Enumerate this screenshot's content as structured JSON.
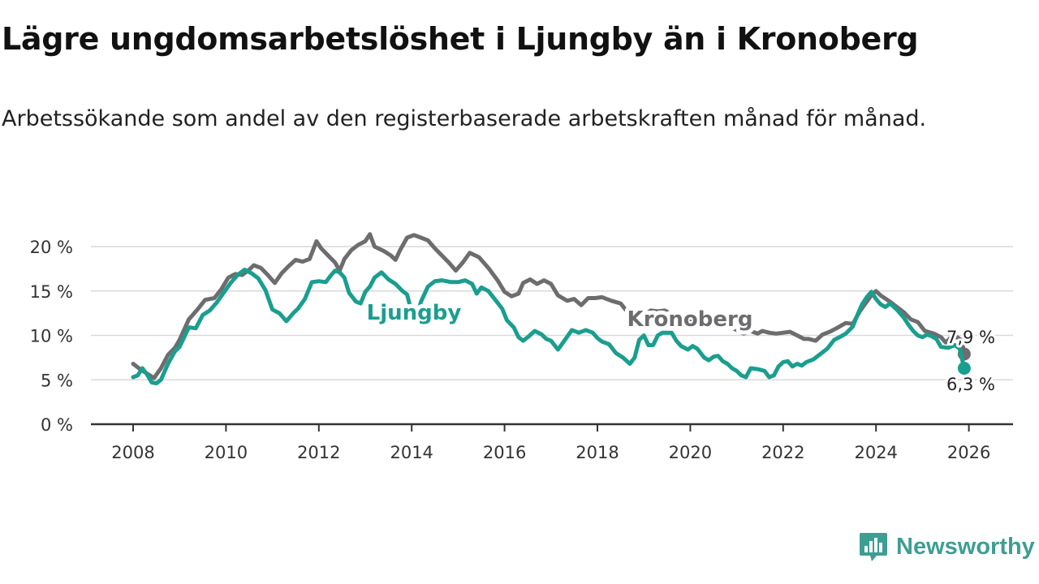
{
  "header": {
    "title": "Lägre ungdomsarbetslöshet i Ljungby än i Kronoberg",
    "subtitle": "Arbetssökande som andel av den registerbaserade arbetskraften månad för månad."
  },
  "brand": {
    "name": "Newsworthy",
    "icon": "newsworthy-logo-icon"
  },
  "colors": {
    "ljungby": "#1a9e8f",
    "kronoberg": "#6d6d6f",
    "grid": "#d9d9d9",
    "axis": "#333333"
  },
  "chart_data": {
    "type": "line",
    "title": "Lägre ungdomsarbetslöshet i Ljungby än i Kronoberg",
    "xlabel": "",
    "ylabel": "",
    "xlim": [
      2007.5,
      2027
    ],
    "ylim": [
      0,
      20
    ],
    "x_ticks": [
      2008,
      2010,
      2012,
      2014,
      2016,
      2018,
      2020,
      2022,
      2024,
      2026
    ],
    "x_tick_labels": [
      "2008",
      "2010",
      "2012",
      "2014",
      "2016",
      "2018",
      "2020",
      "2022",
      "2024",
      "2026"
    ],
    "y_ticks": [
      0,
      5,
      10,
      15,
      20
    ],
    "y_tick_labels": [
      "0 %",
      "5 %",
      "10 %",
      "15 %",
      "20 %"
    ],
    "series": [
      {
        "name": "Kronoberg",
        "label": "Kronoberg",
        "end_label": "7,9 %",
        "points": [
          [
            2008.0,
            6.8
          ],
          [
            2008.15,
            6.2
          ],
          [
            2008.3,
            5.7
          ],
          [
            2008.45,
            5.2
          ],
          [
            2008.6,
            6.3
          ],
          [
            2008.75,
            7.8
          ],
          [
            2008.9,
            8.6
          ],
          [
            2009.0,
            9.5
          ],
          [
            2009.2,
            11.8
          ],
          [
            2009.4,
            13.0
          ],
          [
            2009.55,
            14.0
          ],
          [
            2009.75,
            14.2
          ],
          [
            2009.9,
            15.2
          ],
          [
            2010.05,
            16.5
          ],
          [
            2010.2,
            16.9
          ],
          [
            2010.35,
            16.8
          ],
          [
            2010.5,
            17.4
          ],
          [
            2010.6,
            17.9
          ],
          [
            2010.75,
            17.6
          ],
          [
            2010.9,
            16.8
          ],
          [
            2011.05,
            15.9
          ],
          [
            2011.2,
            17.0
          ],
          [
            2011.35,
            17.8
          ],
          [
            2011.5,
            18.5
          ],
          [
            2011.65,
            18.3
          ],
          [
            2011.8,
            18.6
          ],
          [
            2011.95,
            20.6
          ],
          [
            2012.05,
            19.8
          ],
          [
            2012.2,
            19.0
          ],
          [
            2012.35,
            18.2
          ],
          [
            2012.45,
            17.3
          ],
          [
            2012.55,
            18.6
          ],
          [
            2012.7,
            19.6
          ],
          [
            2012.85,
            20.2
          ],
          [
            2013.0,
            20.6
          ],
          [
            2013.1,
            21.4
          ],
          [
            2013.2,
            20.0
          ],
          [
            2013.4,
            19.5
          ],
          [
            2013.55,
            19.0
          ],
          [
            2013.65,
            18.5
          ],
          [
            2013.75,
            19.6
          ],
          [
            2013.9,
            21.0
          ],
          [
            2014.05,
            21.3
          ],
          [
            2014.2,
            21.0
          ],
          [
            2014.35,
            20.7
          ],
          [
            2014.5,
            19.8
          ],
          [
            2014.65,
            19.0
          ],
          [
            2014.8,
            18.2
          ],
          [
            2014.95,
            17.3
          ],
          [
            2015.1,
            18.2
          ],
          [
            2015.25,
            19.3
          ],
          [
            2015.45,
            18.8
          ],
          [
            2015.65,
            17.6
          ],
          [
            2015.85,
            16.2
          ],
          [
            2016.0,
            14.9
          ],
          [
            2016.15,
            14.4
          ],
          [
            2016.3,
            14.7
          ],
          [
            2016.4,
            15.9
          ],
          [
            2016.55,
            16.3
          ],
          [
            2016.7,
            15.8
          ],
          [
            2016.85,
            16.2
          ],
          [
            2017.0,
            15.8
          ],
          [
            2017.15,
            14.5
          ],
          [
            2017.35,
            13.9
          ],
          [
            2017.5,
            14.1
          ],
          [
            2017.65,
            13.4
          ],
          [
            2017.8,
            14.2
          ],
          [
            2017.95,
            14.2
          ],
          [
            2018.1,
            14.3
          ],
          [
            2018.3,
            13.9
          ],
          [
            2018.5,
            13.6
          ],
          [
            2018.65,
            12.6
          ],
          [
            2018.8,
            12.3
          ],
          [
            2019.0,
            12.3
          ],
          [
            2019.15,
            12.8
          ],
          [
            2019.3,
            12.7
          ],
          [
            2019.45,
            12.8
          ],
          [
            2019.6,
            12.4
          ],
          [
            2019.8,
            11.4
          ],
          [
            2020.0,
            11.8
          ],
          [
            2020.15,
            12.5
          ],
          [
            2020.3,
            12.6
          ],
          [
            2020.5,
            12.0
          ],
          [
            2020.7,
            11.5
          ],
          [
            2020.85,
            11.0
          ],
          [
            2021.0,
            10.6
          ],
          [
            2021.15,
            10.2
          ],
          [
            2021.3,
            10.5
          ],
          [
            2021.45,
            10.2
          ],
          [
            2021.55,
            10.5
          ],
          [
            2021.7,
            10.3
          ],
          [
            2021.85,
            10.2
          ],
          [
            2022.0,
            10.3
          ],
          [
            2022.15,
            10.4
          ],
          [
            2022.3,
            10.0
          ],
          [
            2022.45,
            9.6
          ],
          [
            2022.55,
            9.6
          ],
          [
            2022.7,
            9.4
          ],
          [
            2022.85,
            10.1
          ],
          [
            2023.0,
            10.4
          ],
          [
            2023.15,
            10.8
          ],
          [
            2023.35,
            11.4
          ],
          [
            2023.5,
            11.3
          ],
          [
            2023.65,
            12.7
          ],
          [
            2023.8,
            13.8
          ],
          [
            2023.9,
            14.5
          ],
          [
            2024.0,
            15.0
          ],
          [
            2024.1,
            14.5
          ],
          [
            2024.3,
            13.8
          ],
          [
            2024.45,
            13.2
          ],
          [
            2024.6,
            12.6
          ],
          [
            2024.75,
            11.8
          ],
          [
            2024.9,
            11.5
          ],
          [
            2025.05,
            10.5
          ],
          [
            2025.25,
            10.2
          ],
          [
            2025.4,
            9.8
          ],
          [
            2025.5,
            9.2
          ],
          [
            2025.6,
            9.7
          ],
          [
            2025.75,
            9.8
          ],
          [
            2025.85,
            9.4
          ],
          [
            2025.9,
            7.9
          ]
        ]
      },
      {
        "name": "Ljungby",
        "label": "Ljungby",
        "end_label": "6,3 %",
        "points": [
          [
            2008.0,
            5.3
          ],
          [
            2008.1,
            5.5
          ],
          [
            2008.2,
            6.3
          ],
          [
            2008.3,
            5.6
          ],
          [
            2008.4,
            4.7
          ],
          [
            2008.5,
            4.6
          ],
          [
            2008.6,
            5.0
          ],
          [
            2008.75,
            6.8
          ],
          [
            2008.9,
            8.2
          ],
          [
            2009.0,
            8.7
          ],
          [
            2009.1,
            9.8
          ],
          [
            2009.2,
            10.9
          ],
          [
            2009.35,
            10.8
          ],
          [
            2009.5,
            12.3
          ],
          [
            2009.65,
            12.8
          ],
          [
            2009.8,
            13.7
          ],
          [
            2009.95,
            14.8
          ],
          [
            2010.1,
            15.9
          ],
          [
            2010.25,
            16.8
          ],
          [
            2010.4,
            17.4
          ],
          [
            2010.55,
            17.0
          ],
          [
            2010.7,
            16.4
          ],
          [
            2010.85,
            15.1
          ],
          [
            2011.0,
            12.9
          ],
          [
            2011.15,
            12.5
          ],
          [
            2011.3,
            11.6
          ],
          [
            2011.45,
            12.5
          ],
          [
            2011.55,
            13.0
          ],
          [
            2011.7,
            14.1
          ],
          [
            2011.85,
            16.0
          ],
          [
            2012.0,
            16.1
          ],
          [
            2012.15,
            16.0
          ],
          [
            2012.25,
            16.7
          ],
          [
            2012.35,
            17.3
          ],
          [
            2012.45,
            17.1
          ],
          [
            2012.55,
            16.5
          ],
          [
            2012.65,
            14.8
          ],
          [
            2012.8,
            13.8
          ],
          [
            2012.9,
            13.6
          ],
          [
            2013.0,
            14.9
          ],
          [
            2013.1,
            15.5
          ],
          [
            2013.2,
            16.5
          ],
          [
            2013.35,
            17.1
          ],
          [
            2013.5,
            16.3
          ],
          [
            2013.65,
            15.8
          ],
          [
            2013.8,
            15.0
          ],
          [
            2013.9,
            14.6
          ],
          [
            2014.0,
            12.6
          ],
          [
            2014.1,
            11.9
          ],
          [
            2014.2,
            13.8
          ],
          [
            2014.35,
            15.5
          ],
          [
            2014.5,
            16.1
          ],
          [
            2014.65,
            16.2
          ],
          [
            2014.85,
            16.0
          ],
          [
            2015.0,
            16.0
          ],
          [
            2015.15,
            16.2
          ],
          [
            2015.3,
            15.8
          ],
          [
            2015.4,
            14.7
          ],
          [
            2015.5,
            15.4
          ],
          [
            2015.65,
            15.0
          ],
          [
            2015.8,
            14.0
          ],
          [
            2015.95,
            13.0
          ],
          [
            2016.05,
            11.7
          ],
          [
            2016.2,
            10.9
          ],
          [
            2016.3,
            9.8
          ],
          [
            2016.4,
            9.4
          ],
          [
            2016.5,
            9.8
          ],
          [
            2016.65,
            10.5
          ],
          [
            2016.8,
            10.1
          ],
          [
            2016.9,
            9.6
          ],
          [
            2017.0,
            9.4
          ],
          [
            2017.15,
            8.4
          ],
          [
            2017.3,
            9.5
          ],
          [
            2017.45,
            10.6
          ],
          [
            2017.6,
            10.3
          ],
          [
            2017.75,
            10.6
          ],
          [
            2017.9,
            10.3
          ],
          [
            2018.0,
            9.7
          ],
          [
            2018.1,
            9.3
          ],
          [
            2018.25,
            9.0
          ],
          [
            2018.4,
            8.0
          ],
          [
            2018.55,
            7.5
          ],
          [
            2018.7,
            6.8
          ],
          [
            2018.8,
            7.5
          ],
          [
            2018.9,
            9.5
          ],
          [
            2019.0,
            10.0
          ],
          [
            2019.1,
            8.9
          ],
          [
            2019.2,
            8.9
          ],
          [
            2019.3,
            10.0
          ],
          [
            2019.4,
            10.3
          ],
          [
            2019.5,
            10.3
          ],
          [
            2019.6,
            10.3
          ],
          [
            2019.7,
            9.4
          ],
          [
            2019.8,
            8.8
          ],
          [
            2019.95,
            8.4
          ],
          [
            2020.05,
            8.8
          ],
          [
            2020.15,
            8.5
          ],
          [
            2020.3,
            7.5
          ],
          [
            2020.4,
            7.2
          ],
          [
            2020.5,
            7.6
          ],
          [
            2020.6,
            7.7
          ],
          [
            2020.7,
            7.1
          ],
          [
            2020.8,
            6.8
          ],
          [
            2020.9,
            6.3
          ],
          [
            2021.0,
            6.0
          ],
          [
            2021.1,
            5.5
          ],
          [
            2021.2,
            5.3
          ],
          [
            2021.3,
            6.3
          ],
          [
            2021.45,
            6.2
          ],
          [
            2021.6,
            6.0
          ],
          [
            2021.7,
            5.3
          ],
          [
            2021.8,
            5.5
          ],
          [
            2021.9,
            6.5
          ],
          [
            2022.0,
            7.0
          ],
          [
            2022.1,
            7.1
          ],
          [
            2022.2,
            6.5
          ],
          [
            2022.3,
            6.8
          ],
          [
            2022.4,
            6.6
          ],
          [
            2022.5,
            7.0
          ],
          [
            2022.65,
            7.3
          ],
          [
            2022.8,
            7.9
          ],
          [
            2022.95,
            8.5
          ],
          [
            2023.1,
            9.5
          ],
          [
            2023.25,
            9.9
          ],
          [
            2023.35,
            10.2
          ],
          [
            2023.5,
            11.0
          ],
          [
            2023.6,
            12.3
          ],
          [
            2023.7,
            13.5
          ],
          [
            2023.8,
            14.3
          ],
          [
            2023.9,
            14.9
          ],
          [
            2024.0,
            14.1
          ],
          [
            2024.1,
            13.5
          ],
          [
            2024.2,
            13.2
          ],
          [
            2024.3,
            13.6
          ],
          [
            2024.45,
            12.9
          ],
          [
            2024.6,
            12.0
          ],
          [
            2024.7,
            11.2
          ],
          [
            2024.8,
            10.5
          ],
          [
            2024.9,
            10.0
          ],
          [
            2025.0,
            9.8
          ],
          [
            2025.1,
            10.1
          ],
          [
            2025.2,
            9.9
          ],
          [
            2025.3,
            9.6
          ],
          [
            2025.4,
            8.7
          ],
          [
            2025.55,
            8.6
          ],
          [
            2025.7,
            8.9
          ],
          [
            2025.8,
            8.5
          ],
          [
            2025.9,
            6.3
          ]
        ]
      }
    ],
    "annotations": [
      {
        "text": "Ljungby",
        "series": "Ljungby"
      },
      {
        "text": "Kronoberg",
        "series": "Kronoberg"
      }
    ]
  }
}
